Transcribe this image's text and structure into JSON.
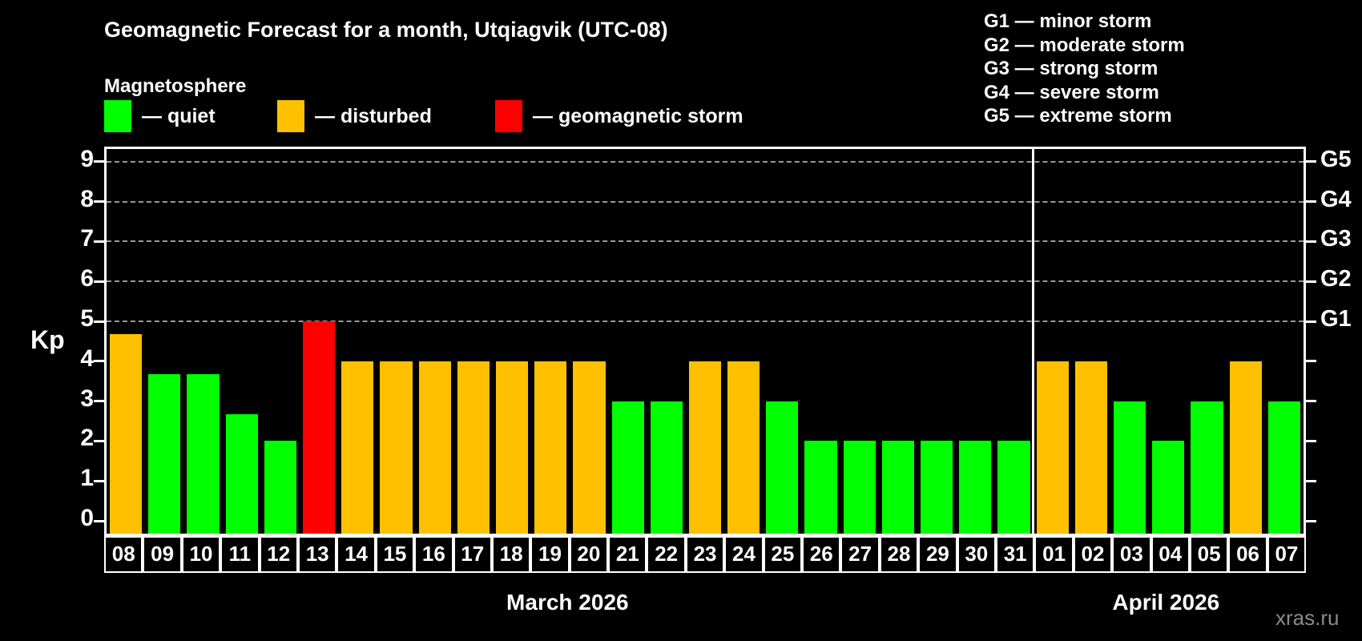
{
  "title": "Geomagnetic Forecast for a month, Utqiagvik (UTC-08)",
  "subtitle": "Magnetosphere",
  "legend": {
    "items": [
      {
        "status": "quiet",
        "label": "— quiet",
        "color": "#00ff00",
        "x": 130
      },
      {
        "status": "disturbed",
        "label": "— disturbed",
        "color": "#ffc000",
        "x": 346
      },
      {
        "status": "storm",
        "label": "— geomagnetic storm",
        "color": "#ff0000",
        "x": 618
      }
    ]
  },
  "g_scale_legend": [
    {
      "label": "G1 — minor storm"
    },
    {
      "label": "G2 — moderate storm"
    },
    {
      "label": "G3 — strong storm"
    },
    {
      "label": "G4 — severe storm"
    },
    {
      "label": "G5 — extreme storm"
    }
  ],
  "watermark": "xras.ru",
  "chart_data": {
    "type": "bar",
    "title": "Geomagnetic Forecast for a month, Utqiagvik (UTC-08)",
    "ylabel": "Kp",
    "ylim": [
      0,
      9
    ],
    "yticks": [
      0,
      1,
      2,
      3,
      4,
      5,
      6,
      7,
      8,
      9
    ],
    "gridlines_at": [
      5,
      6,
      7,
      8,
      9
    ],
    "grid": "dashed horizontal lines at Kp 5 through 9",
    "legend_position": "top",
    "right_axis": [
      {
        "kp": 5,
        "label": "G1"
      },
      {
        "kp": 6,
        "label": "G2"
      },
      {
        "kp": 7,
        "label": "G3"
      },
      {
        "kp": 8,
        "label": "G4"
      },
      {
        "kp": 9,
        "label": "G5"
      }
    ],
    "months": [
      {
        "label": "March 2026",
        "start_index": 0,
        "count": 24
      },
      {
        "label": "April 2026",
        "start_index": 24,
        "count": 7
      }
    ],
    "categories": [
      "08",
      "09",
      "10",
      "11",
      "12",
      "13",
      "14",
      "15",
      "16",
      "17",
      "18",
      "19",
      "20",
      "21",
      "22",
      "23",
      "24",
      "25",
      "26",
      "27",
      "28",
      "29",
      "30",
      "31",
      "01",
      "02",
      "03",
      "04",
      "05",
      "06",
      "07"
    ],
    "values": [
      4.67,
      3.67,
      3.67,
      2.67,
      2,
      5,
      4,
      4,
      4,
      4,
      4,
      4,
      4,
      3,
      3,
      4,
      4,
      3,
      2,
      2,
      2,
      2,
      2,
      2,
      4,
      4,
      3,
      2,
      3,
      4,
      3
    ],
    "statuses": [
      "disturbed",
      "quiet",
      "quiet",
      "quiet",
      "quiet",
      "storm",
      "disturbed",
      "disturbed",
      "disturbed",
      "disturbed",
      "disturbed",
      "disturbed",
      "disturbed",
      "quiet",
      "quiet",
      "disturbed",
      "disturbed",
      "quiet",
      "quiet",
      "quiet",
      "quiet",
      "quiet",
      "quiet",
      "quiet",
      "disturbed",
      "disturbed",
      "quiet",
      "quiet",
      "quiet",
      "disturbed",
      "quiet"
    ],
    "colors": {
      "quiet": "#00ff00",
      "disturbed": "#ffc000",
      "storm": "#ff0000"
    }
  }
}
